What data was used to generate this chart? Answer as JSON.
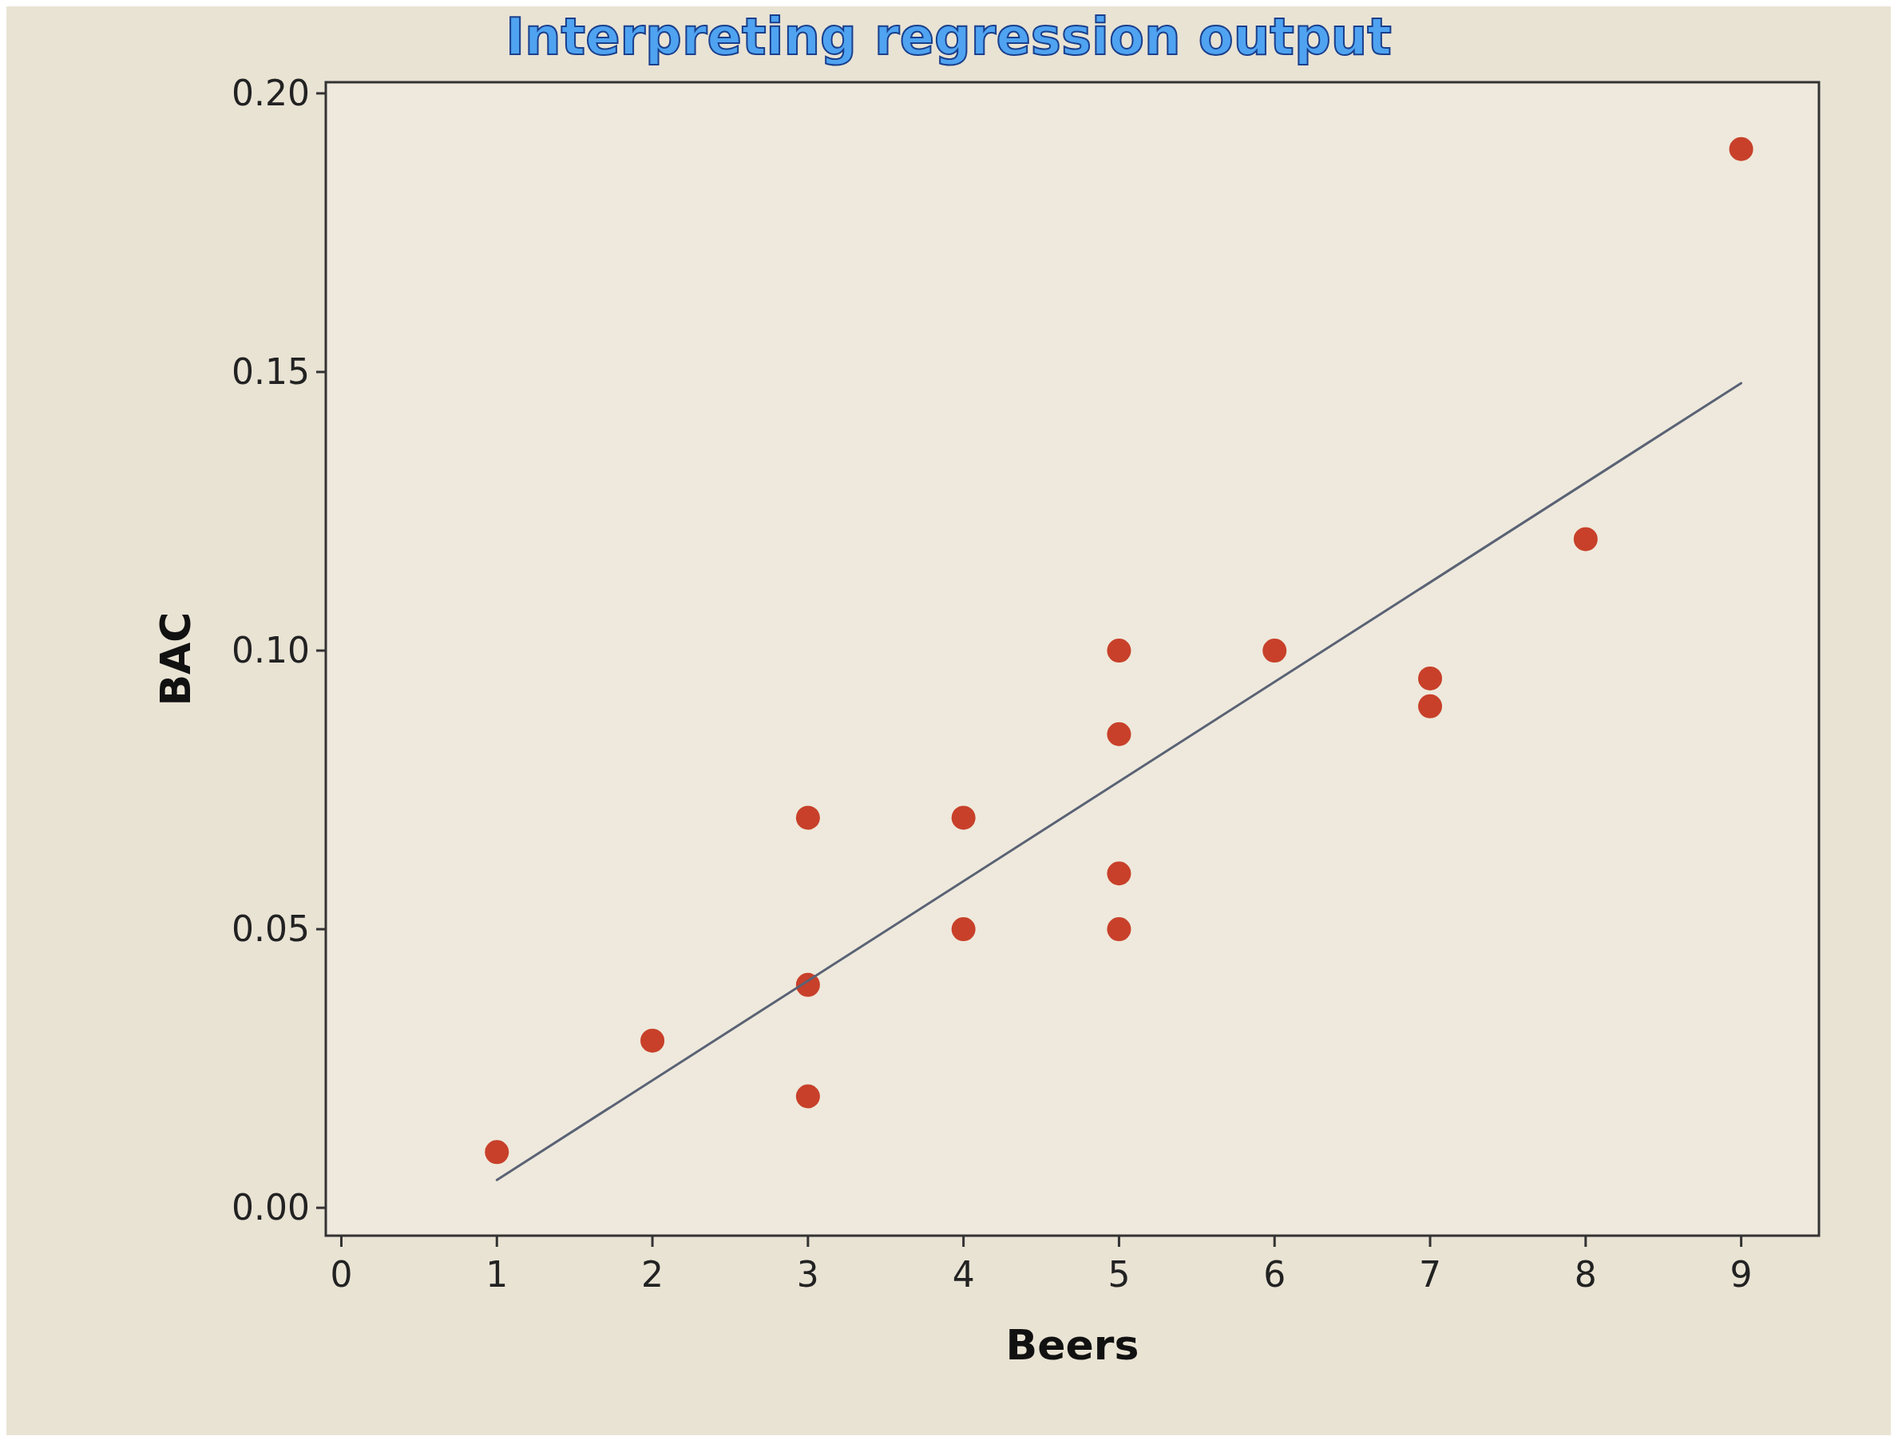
{
  "chart_data": {
    "type": "scatter",
    "title": "Interpreting regression output",
    "xlabel": "Beers",
    "ylabel": "BAC",
    "xlim": [
      -0.1,
      9.5
    ],
    "ylim": [
      -0.005,
      0.202
    ],
    "xticks": [
      0,
      1,
      2,
      3,
      4,
      5,
      6,
      7,
      8,
      9
    ],
    "yticks": [
      {
        "value": 0,
        "label": "0.00"
      },
      {
        "value": 0.05,
        "label": "0.05"
      },
      {
        "value": 0.1,
        "label": "0.10"
      },
      {
        "value": 0.15,
        "label": "0.15"
      },
      {
        "value": 0.2,
        "label": "0.20"
      }
    ],
    "grid": false,
    "series": [
      {
        "color": "#c8402a",
        "marker": "circle",
        "x": [
          1,
          2,
          3,
          3,
          3,
          4,
          4,
          5,
          5,
          5,
          5,
          6,
          7,
          7,
          8,
          9
        ],
        "values": [
          0.01,
          0.03,
          0.07,
          0.04,
          0.02,
          0.07,
          0.05,
          0.1,
          0.085,
          0.06,
          0.05,
          0.1,
          0.095,
          0.09,
          0.12,
          0.19
        ]
      },
      {
        "type": "line",
        "color": "#5a6275",
        "x": [
          1,
          9
        ],
        "values": [
          0.005,
          0.148
        ]
      }
    ]
  }
}
